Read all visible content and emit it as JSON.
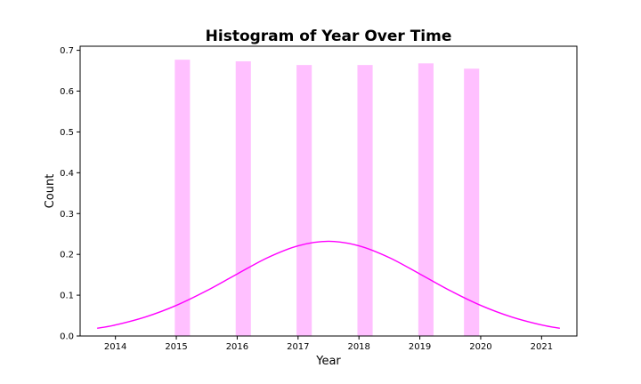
{
  "chart_data": {
    "type": "bar",
    "title": "Histogram of Year Over Time",
    "xlabel": "Year",
    "ylabel": "Count",
    "xlim": [
      2013.42,
      2021.58
    ],
    "ylim": [
      0,
      0.71
    ],
    "xticks": [
      2014,
      2015,
      2016,
      2017,
      2018,
      2019,
      2020,
      2021
    ],
    "yticks": [
      0.0,
      0.1,
      0.2,
      0.3,
      0.4,
      0.5,
      0.6,
      0.7
    ],
    "bar_width": 0.25,
    "bars": [
      {
        "x": 2015.1,
        "value": 0.677
      },
      {
        "x": 2016.1,
        "value": 0.673
      },
      {
        "x": 2017.1,
        "value": 0.664
      },
      {
        "x": 2018.1,
        "value": 0.664
      },
      {
        "x": 2019.1,
        "value": 0.668
      },
      {
        "x": 2019.85,
        "value": 0.655
      }
    ],
    "density_curve": {
      "x": [
        2013.7,
        2014.0,
        2014.5,
        2015.0,
        2015.5,
        2016.0,
        2016.5,
        2017.0,
        2017.5,
        2018.0,
        2018.5,
        2019.0,
        2019.5,
        2020.0,
        2020.5,
        2021.0,
        2021.3
      ],
      "y": [
        0.019,
        0.027,
        0.047,
        0.075,
        0.111,
        0.152,
        0.192,
        0.221,
        0.232,
        0.221,
        0.192,
        0.152,
        0.111,
        0.075,
        0.047,
        0.027,
        0.019
      ]
    },
    "grid": false,
    "colors": {
      "bars": "#ffc0ff",
      "curve": "#ff00ff",
      "axes": "#000000",
      "background": "#ffffff"
    }
  }
}
